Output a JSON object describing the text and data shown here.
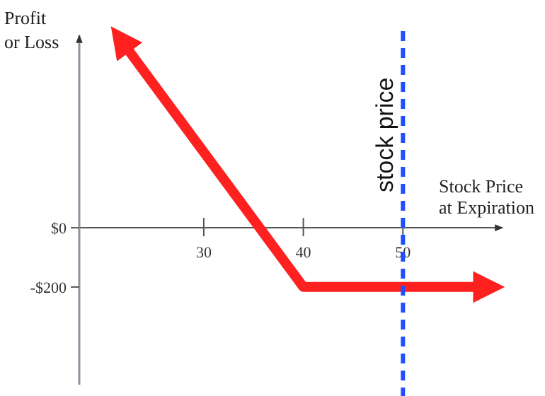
{
  "chart_data": {
    "type": "line",
    "ylabel": "Profit or Loss",
    "xlabel": "Stock Price at Expiration",
    "xlim": [
      17.5,
      60
    ],
    "ylim": [
      -530,
      650
    ],
    "xticks": [
      30,
      40,
      50
    ],
    "yticks": [
      {
        "value": 0,
        "label": "$0"
      },
      {
        "value": -200,
        "label": "-$200"
      }
    ],
    "series": [
      {
        "color": "#ff2020",
        "x": [
          22,
          40,
          58
        ],
        "values": [
          620,
          -200,
          -200
        ]
      }
    ],
    "ref_lines": [
      {
        "axis": "x",
        "value": 50,
        "label": "stock price",
        "color": "#1f4fff",
        "line_style": "dashed"
      }
    ],
    "grid": false
  }
}
